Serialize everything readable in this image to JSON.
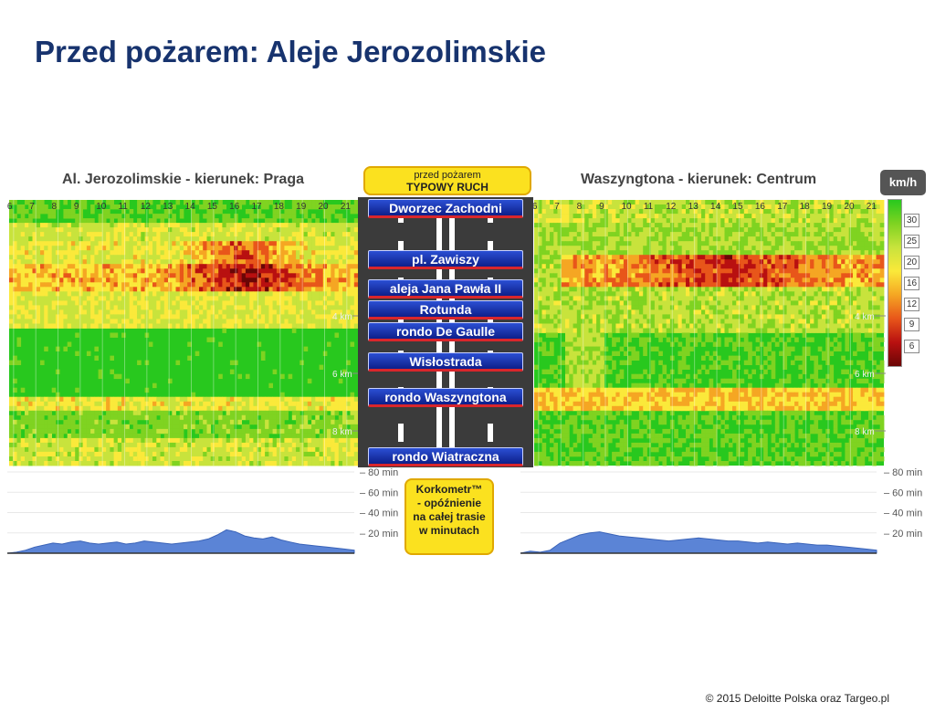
{
  "slide": {
    "title": "Przed pożarem: Aleje Jerozolimskie",
    "footer": "© 2015 Deloitte Polska oraz Targeo.pl"
  },
  "left_panel": {
    "title": "Al. Jerozolimskie - kierunek: Praga"
  },
  "right_panel": {
    "title": "Waszyngtona - kierunek: Centrum"
  },
  "badge_top": {
    "line1": "przed pożarem",
    "line2": "TYPOWY RUCH"
  },
  "badge_mid": {
    "lines": [
      "Korkometr™",
      "- opóźnienie",
      "na całej trasie",
      "w minutach"
    ]
  },
  "road": {
    "places": [
      "Dworzec Zachodni",
      "pl. Zawiszy",
      "aleja Jana Pawła II",
      "Rotunda",
      "rondo De Gaulle",
      "Wisłostrada",
      "rondo Waszyngtona",
      "rondo Wiatraczna"
    ]
  },
  "legend": {
    "unit": "km/h",
    "levels": [
      "30",
      "25",
      "20",
      "16",
      "12",
      "9",
      "6"
    ],
    "colors": [
      "#28c81e",
      "#7fd321",
      "#c8e33c",
      "#fbe93a",
      "#f5a623",
      "#e8561a",
      "#b81010",
      "#6a0606"
    ]
  },
  "chart_data": [
    {
      "type": "heatmap",
      "title": "Al. Jerozolimskie - kierunek: Praga",
      "x_ticks": [
        "6",
        "7",
        "8",
        "9",
        "10",
        "11",
        "12",
        "13",
        "14",
        "15",
        "16",
        "17",
        "18",
        "19",
        "20",
        "21"
      ],
      "y_ticks": [
        "4 km",
        "6 km",
        "8 km"
      ],
      "speed_unit": "km/h"
    },
    {
      "type": "heatmap",
      "title": "Waszyngtona - kierunek: Centrum",
      "x_ticks": [
        "6",
        "7",
        "8",
        "9",
        "10",
        "11",
        "12",
        "13",
        "14",
        "15",
        "16",
        "17",
        "18",
        "19",
        "20",
        "21"
      ],
      "y_ticks": [
        "4 km",
        "6 km",
        "8 km"
      ],
      "speed_unit": "km/h"
    },
    {
      "type": "area",
      "series": [
        {
          "values": [
            0,
            1,
            3,
            6,
            8,
            10,
            9,
            11,
            12,
            10,
            9,
            10,
            11,
            9,
            10,
            12,
            11,
            10,
            9,
            10,
            11,
            12,
            14,
            18,
            23,
            21,
            17,
            15,
            14,
            16,
            13,
            11,
            9,
            8,
            7,
            6,
            5,
            4,
            3
          ]
        }
      ],
      "y_ticks": [
        "20 min",
        "40 min",
        "60 min",
        "80 min"
      ],
      "ylim": [
        0,
        80
      ]
    },
    {
      "type": "area",
      "series": [
        {
          "values": [
            0,
            2,
            1,
            3,
            10,
            14,
            18,
            20,
            21,
            19,
            17,
            16,
            15,
            14,
            13,
            12,
            13,
            14,
            15,
            14,
            13,
            12,
            12,
            11,
            10,
            11,
            10,
            9,
            10,
            9,
            8,
            8,
            7,
            6,
            5,
            4,
            3
          ]
        }
      ],
      "y_ticks": [
        "20 min",
        "40 min",
        "60 min",
        "80 min"
      ],
      "ylim": [
        0,
        80
      ]
    }
  ]
}
